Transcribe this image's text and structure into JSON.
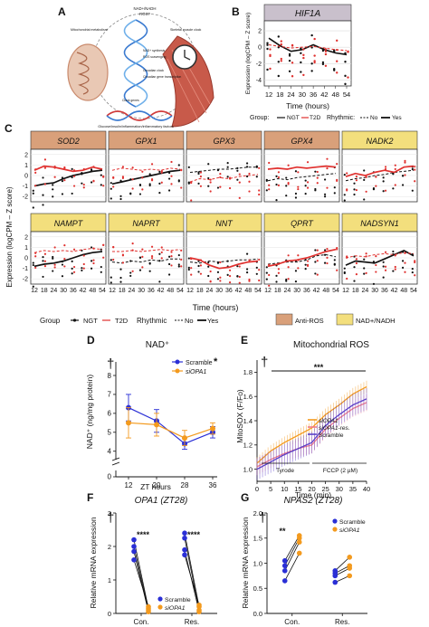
{
  "colors": {
    "ngt": "#111111",
    "t2d": "#e0312f",
    "antiros_strip": "#d9a07a",
    "nad_strip": "#f3df7d",
    "hif_strip": "#c9c0cc",
    "blue": "#2a2fd6",
    "orange": "#f39a1e",
    "pink": "#f07a8a",
    "red": "#e0202a",
    "purple": "#5a3fc8"
  },
  "panel_letters": {
    "a": "A",
    "b": "B",
    "c": "C",
    "d": "D",
    "e": "E",
    "f": "F",
    "g": "G"
  },
  "panelA": {
    "labels": [
      "NAD+/NADH",
      "ROS?",
      "Mitochondrial metabolism",
      "Skeletal muscle clock",
      "NAD+ synthesis",
      "ROS scavenging",
      "Circadian clock",
      "Circadian gene transcription",
      "Clock genes",
      "Glucose/insulin/inflammation/inflammatory factors"
    ]
  },
  "ticks_time": [
    "12",
    "18",
    "24",
    "30",
    "36",
    "42",
    "48",
    "54"
  ],
  "chart_data": [
    {
      "panel": "B",
      "type": "line",
      "title": "HIF1A",
      "xlabel": "Time (hours)",
      "ylabel": "Expression (logCPM – Z score)",
      "x": [
        12,
        18,
        24,
        30,
        36,
        42,
        48,
        54
      ],
      "xlim": [
        12,
        54
      ],
      "ylim": [
        -4.5,
        3
      ],
      "yticks": [
        2,
        0,
        -2,
        -4
      ],
      "series": [
        {
          "name": "NGT",
          "values": [
            1.1,
            0.2,
            -0.5,
            -0.3,
            0.3,
            -0.3,
            -0.7,
            -0.9
          ]
        },
        {
          "name": "T2D",
          "values": [
            0.3,
            0.1,
            -0.1,
            0.0,
            0.1,
            -0.1,
            -0.3,
            -0.4
          ]
        }
      ],
      "legend": {
        "group_label": "Group:",
        "group": [
          "NGT",
          "T2D"
        ],
        "rhythmic_label": "Rhythmic:",
        "rhythmic": [
          "No",
          "Yes"
        ]
      }
    },
    {
      "panel": "C",
      "type": "line",
      "xlabel": "Time (hours)",
      "ylabel": "Expression (logCPM – Z score)",
      "x": [
        12,
        18,
        24,
        30,
        36,
        42,
        48,
        54
      ],
      "ylim": [
        -2.5,
        2.5
      ],
      "yticks": [
        2,
        1,
        0,
        -1,
        -2
      ],
      "genes": [
        {
          "name": "SOD2",
          "category": "Anti-ROS",
          "ngt": [
            -1.0,
            -0.8,
            -0.7,
            -0.3,
            0.0,
            0.2,
            0.4,
            0.5
          ],
          "t2d": [
            0.5,
            0.9,
            0.8,
            0.6,
            0.4,
            0.5,
            0.8,
            0.6
          ],
          "ngt_rhythmic": true,
          "t2d_rhythmic": true
        },
        {
          "name": "GPX1",
          "category": "Anti-ROS",
          "ngt": [
            -0.8,
            -0.6,
            -0.4,
            -0.2,
            0.0,
            0.2,
            0.4,
            0.5
          ],
          "t2d": [
            0.5,
            0.7,
            0.6,
            0.5,
            0.6,
            0.5,
            0.7,
            0.6
          ],
          "ngt_rhythmic": true,
          "t2d_rhythmic": false
        },
        {
          "name": "GPX3",
          "category": "Anti-ROS",
          "ngt": [
            0.3,
            0.4,
            0.5,
            0.6,
            0.6,
            0.7,
            0.8,
            0.8
          ],
          "t2d": [
            -0.6,
            -0.3,
            -0.4,
            -0.2,
            -0.3,
            -0.1,
            0.0,
            0.1
          ],
          "ngt_rhythmic": false,
          "t2d_rhythmic": false
        },
        {
          "name": "GPX4",
          "category": "Anti-ROS",
          "ngt": [
            -0.5,
            -0.3,
            -0.4,
            -0.2,
            -0.1,
            0.0,
            0.1,
            0.2
          ],
          "t2d": [
            0.6,
            0.7,
            0.6,
            0.8,
            0.7,
            0.8,
            0.9,
            0.8
          ],
          "ngt_rhythmic": false,
          "t2d_rhythmic": true
        },
        {
          "name": "NADK2",
          "category": "NAD+/NADH",
          "ngt": [
            -0.5,
            -0.3,
            -0.2,
            0.0,
            0.1,
            0.3,
            0.4,
            0.5
          ],
          "t2d": [
            -0.1,
            0.2,
            0.0,
            0.3,
            0.5,
            0.3,
            0.8,
            0.9
          ],
          "ngt_rhythmic": false,
          "t2d_rhythmic": true
        },
        {
          "name": "NAMPT",
          "category": "NAD+/NADH",
          "ngt": [
            -0.8,
            -0.6,
            -0.5,
            -0.3,
            0.0,
            0.3,
            0.5,
            0.6
          ],
          "t2d": [
            0.5,
            0.7,
            0.6,
            0.7,
            0.6,
            0.8,
            0.9,
            0.8
          ],
          "ngt_rhythmic": true,
          "t2d_rhythmic": false
        },
        {
          "name": "NAPRT",
          "category": "NAD+/NADH",
          "ngt": [
            -0.4,
            -0.5,
            -0.3,
            -0.4,
            -0.2,
            -0.3,
            -0.1,
            -0.1
          ],
          "t2d": [
            0.6,
            0.6,
            0.7,
            0.6,
            0.7,
            0.8,
            0.7,
            0.8
          ],
          "ngt_rhythmic": false,
          "t2d_rhythmic": false
        },
        {
          "name": "NNT",
          "category": "NAD+/NADH",
          "ngt": [
            -0.4,
            -0.5,
            -0.3,
            -0.4,
            -0.3,
            -0.2,
            -0.2,
            -0.1
          ],
          "t2d": [
            0.0,
            -0.2,
            -0.7,
            -1.0,
            -0.9,
            -0.6,
            -0.4,
            -0.3
          ],
          "ngt_rhythmic": false,
          "t2d_rhythmic": true
        },
        {
          "name": "QPRT",
          "category": "NAD+/NADH",
          "ngt": [
            -0.6,
            -0.5,
            -0.4,
            -0.4,
            -0.2,
            0.2,
            0.3,
            0.1
          ],
          "t2d": [
            -0.8,
            -0.6,
            -0.3,
            -0.2,
            0.0,
            0.3,
            0.6,
            0.8
          ],
          "ngt_rhythmic": false,
          "t2d_rhythmic": true
        },
        {
          "name": "NADSYN1",
          "category": "NAD+/NADH",
          "ngt": [
            -0.7,
            -0.3,
            -0.4,
            -0.5,
            -0.1,
            0.3,
            0.7,
            0.2
          ],
          "t2d": [
            0.0,
            0.2,
            0.1,
            0.3,
            0.4,
            0.3,
            0.5,
            0.4
          ],
          "ngt_rhythmic": true,
          "t2d_rhythmic": false
        }
      ],
      "legend": {
        "group_label": "Group",
        "group": [
          "NGT",
          "T2D"
        ],
        "rhythmic_label": "Rhythmic",
        "rhythmic": [
          "No",
          "Yes"
        ],
        "categories": [
          "Anti-ROS",
          "NAD+/NADH"
        ]
      }
    },
    {
      "panel": "D",
      "type": "line",
      "title": "NAD⁺",
      "xlabel": "ZT hours",
      "ylabel": "NAD⁺ (ng/mg protein)",
      "categories": [
        "12",
        "20",
        "28",
        "36"
      ],
      "ylim": [
        0,
        8
      ],
      "yticks": [
        0,
        4,
        5,
        6,
        7,
        8
      ],
      "axis_break": true,
      "series": [
        {
          "name": "Scramble",
          "values": [
            6.3,
            5.6,
            4.4,
            5.0
          ],
          "errors": [
            0.7,
            0.6,
            0.3,
            0.3
          ]
        },
        {
          "name": "siOPA1",
          "values": [
            5.5,
            5.4,
            4.7,
            5.2
          ],
          "errors": [
            0.8,
            0.6,
            0.4,
            0.3
          ]
        }
      ],
      "annotation": "*",
      "dagger": "†"
    },
    {
      "panel": "E",
      "type": "line",
      "title": "Mitochondrial ROS",
      "xlabel": "Time (min)",
      "ylabel": "MitoSOX (F/Fo)",
      "x": [
        0,
        5,
        10,
        15,
        20,
        25,
        30,
        35,
        40
      ],
      "xlim": [
        0,
        40
      ],
      "ylim": [
        0.9,
        1.9
      ],
      "yticks": [
        1.0,
        1.2,
        1.4,
        1.6,
        1.8
      ],
      "series": [
        {
          "name": "siOPA1",
          "values": [
            1.05,
            1.15,
            1.22,
            1.28,
            1.34,
            1.45,
            1.53,
            1.62,
            1.68
          ]
        },
        {
          "name": "siOPA1-res.",
          "values": [
            1.02,
            1.08,
            1.13,
            1.17,
            1.2,
            1.33,
            1.42,
            1.5,
            1.55
          ]
        },
        {
          "name": "Scramble",
          "values": [
            1.0,
            1.06,
            1.12,
            1.17,
            1.22,
            1.36,
            1.45,
            1.53,
            1.58
          ]
        }
      ],
      "phases": [
        "Tyrode",
        "FCCP (2 µM)"
      ],
      "significance": "***",
      "dagger": "†"
    },
    {
      "panel": "F",
      "type": "scatter",
      "title": "OPA1 (ZT28)",
      "ylabel": "Relative mRNA expression",
      "categories": [
        "Con.",
        "Res."
      ],
      "ylim": [
        0,
        3
      ],
      "yticks": [
        0,
        1,
        2,
        3
      ],
      "series": [
        {
          "name": "Scramble",
          "values": [
            [
              2.2,
              2.0,
              1.85,
              1.6
            ],
            [
              2.4,
              2.25,
              1.9,
              1.75
            ]
          ]
        },
        {
          "name": "siOPA1",
          "values": [
            [
              0.15,
              0.1,
              0.05,
              0.2
            ],
            [
              0.2,
              0.1,
              0.05,
              0.25
            ]
          ]
        }
      ],
      "significance": [
        "****",
        "****"
      ],
      "dagger": "†"
    },
    {
      "panel": "G",
      "type": "scatter",
      "title": "NPAS2 (ZT28)",
      "ylabel": "Relative mRNA expression",
      "categories": [
        "Con.",
        "Res."
      ],
      "ylim": [
        0,
        2
      ],
      "yticks": [
        0.0,
        0.5,
        1.0,
        1.5,
        2.0
      ],
      "series": [
        {
          "name": "Scramble",
          "values": [
            [
              1.05,
              0.95,
              0.85,
              0.65
            ],
            [
              0.85,
              0.8,
              0.75,
              0.62
            ]
          ]
        },
        {
          "name": "siOPA1",
          "values": [
            [
              1.55,
              1.5,
              1.42,
              1.2
            ],
            [
              1.12,
              0.95,
              0.9,
              0.75
            ]
          ]
        }
      ],
      "significance": [
        "**"
      ],
      "dagger": "†"
    }
  ]
}
